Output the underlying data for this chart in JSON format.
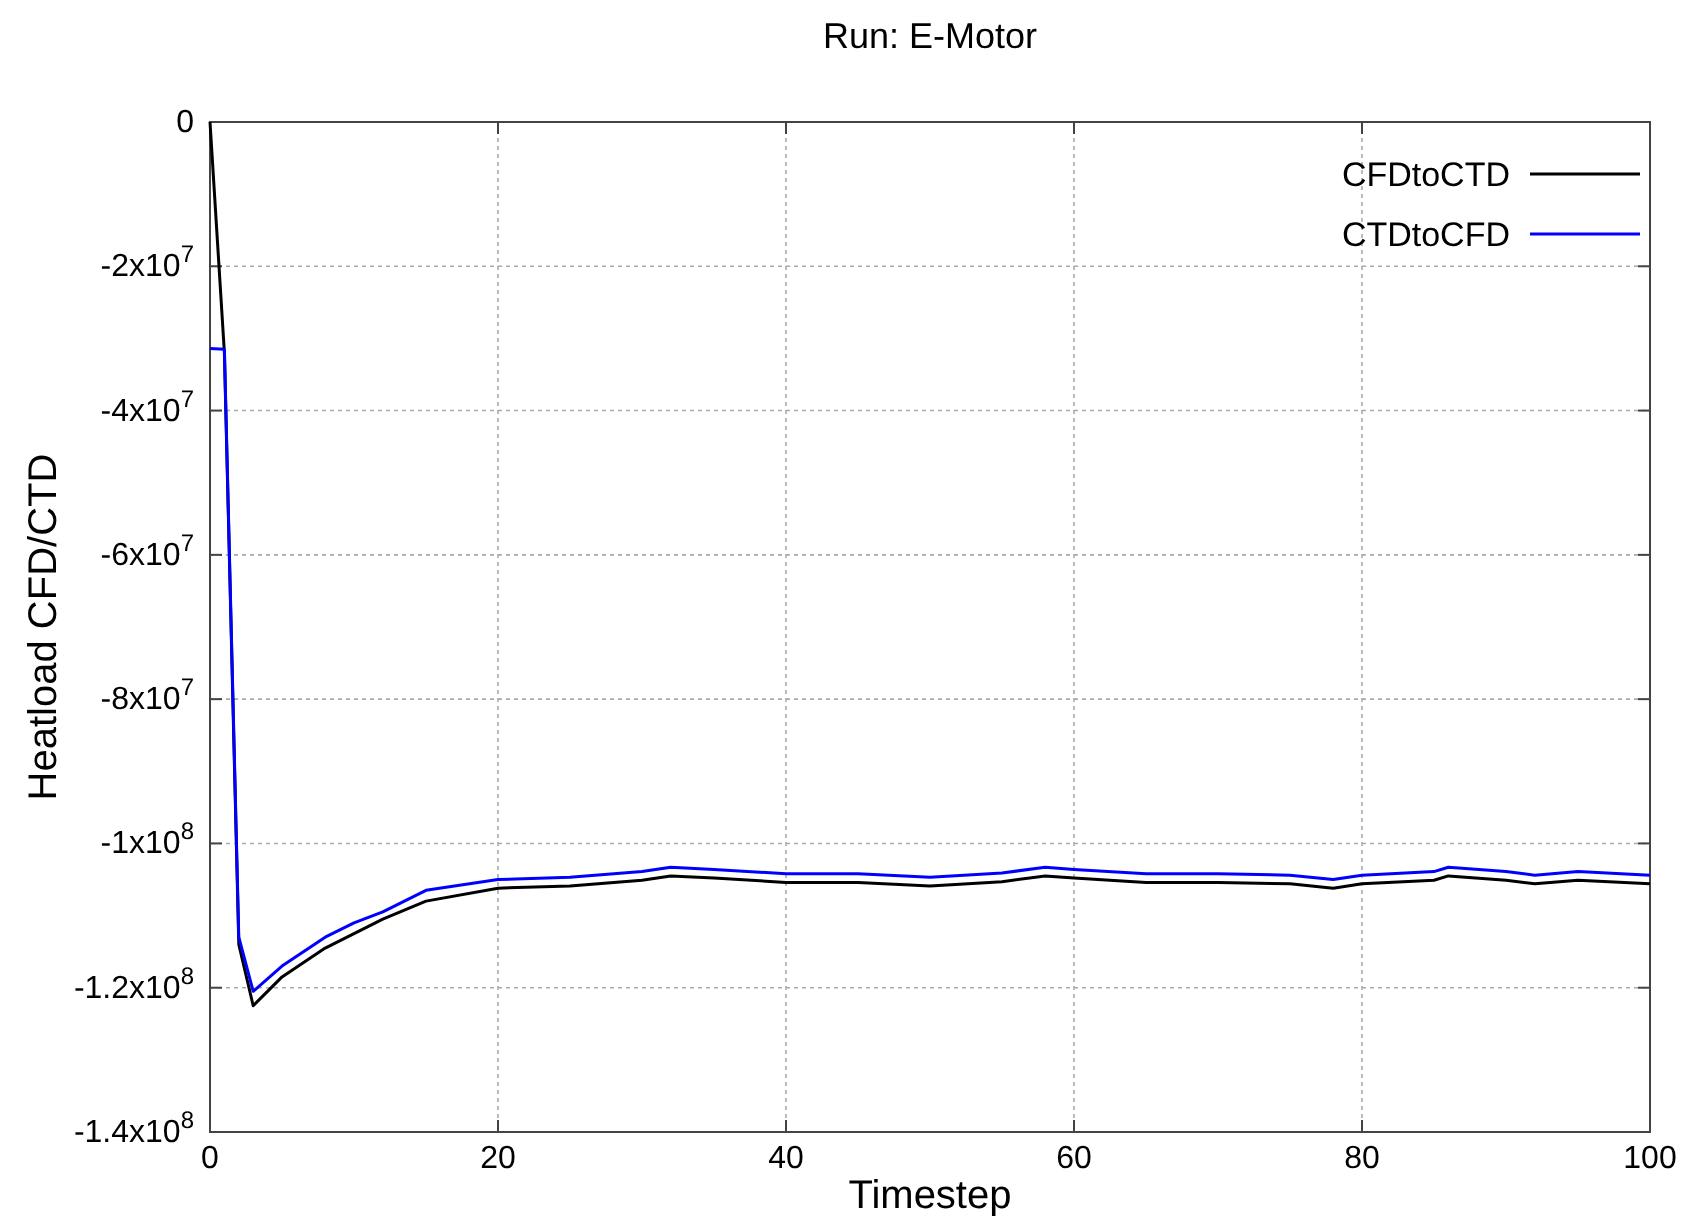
{
  "chart_data": {
    "type": "line",
    "title": "Run: E-Motor",
    "xlabel": "Timestep",
    "ylabel": "Heatload CFD/CTD",
    "x": [
      0,
      1,
      2,
      3,
      5,
      8,
      10,
      12,
      15,
      20,
      25,
      30,
      32,
      35,
      40,
      45,
      50,
      55,
      58,
      60,
      65,
      70,
      75,
      78,
      80,
      85,
      86,
      90,
      92,
      95,
      100
    ],
    "series": [
      {
        "name": "CFDtoCTD",
        "color": "#000000",
        "values": [
          0,
          -32000000,
          -114000000,
          -122500000,
          -118500000,
          -114500000,
          -112500000,
          -110500000,
          -108000000,
          -106200000,
          -105900000,
          -105100000,
          -104500000,
          -104800000,
          -105400000,
          -105400000,
          -105900000,
          -105300000,
          -104500000,
          -104800000,
          -105400000,
          -105400000,
          -105600000,
          -106200000,
          -105600000,
          -105100000,
          -104500000,
          -105100000,
          -105600000,
          -105100000,
          -105600000
        ]
      },
      {
        "name": "CTDtoCFD",
        "color": "#0000ff",
        "values": [
          -31400000,
          -31500000,
          -113000000,
          -120500000,
          -117000000,
          -113000000,
          -111000000,
          -109500000,
          -106500000,
          -105000000,
          -104700000,
          -103900000,
          -103300000,
          -103600000,
          -104200000,
          -104200000,
          -104700000,
          -104100000,
          -103300000,
          -103600000,
          -104200000,
          -104200000,
          -104400000,
          -105000000,
          -104400000,
          -103900000,
          -103300000,
          -103900000,
          -104400000,
          -103900000,
          -104400000
        ]
      }
    ],
    "xlim": [
      0,
      100
    ],
    "xticks": [
      0,
      20,
      40,
      60,
      80,
      100
    ],
    "ylim": [
      -140000000,
      0
    ],
    "yticks": [
      0,
      {
        "value": -20000000,
        "label": "-2x10$^{7}$"
      },
      {
        "value": -40000000,
        "label": "-4x10$^{7}$"
      },
      {
        "value": -60000000,
        "label": "-6x10$^{7}$"
      },
      {
        "value": -80000000,
        "label": "-8x10$^{7}$"
      },
      {
        "value": -100000000,
        "label": "-1x10$^{8}$"
      },
      {
        "value": -120000000,
        "label": "-1.2x10$^{8}$"
      },
      {
        "value": -140000000,
        "label": "-1.4x10$^{8}$"
      }
    ],
    "grid": true,
    "legend": "top right",
    "line_style": "solid",
    "marker": "none"
  }
}
